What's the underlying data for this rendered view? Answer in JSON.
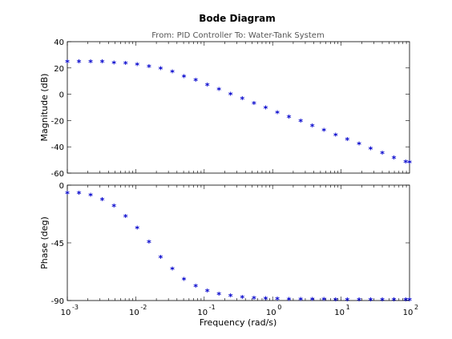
{
  "chart_data": {
    "type": "scatter",
    "title": "Bode Diagram",
    "subtitle": "From: PID Controller  To: Water-Tank System",
    "xlabel": "Frequency  (rad/s)",
    "xscale": "log",
    "xlim": [
      0.001,
      100
    ],
    "x_ticks": [
      {
        "base": "10",
        "exp": "-3",
        "value": 0.001
      },
      {
        "base": "10",
        "exp": "-2",
        "value": 0.01
      },
      {
        "base": "10",
        "exp": "-1",
        "value": 0.1
      },
      {
        "base": "10",
        "exp": "0",
        "value": 1
      },
      {
        "base": "10",
        "exp": "1",
        "value": 10
      },
      {
        "base": "10",
        "exp": "2",
        "value": 100
      }
    ],
    "marker": "*",
    "marker_color": "#0000cc",
    "grid": false,
    "x": [
      0.001,
      0.00148,
      0.00219,
      0.00324,
      0.0048,
      0.0071,
      0.0105,
      0.0156,
      0.0231,
      0.0342,
      0.0506,
      0.075,
      0.111,
      0.164,
      0.243,
      0.36,
      0.534,
      0.79,
      1.17,
      1.73,
      2.57,
      3.8,
      5.62,
      8.33,
      12.3,
      18.3,
      27.0,
      40.0,
      59.2,
      87.7,
      100
    ],
    "magnitude": {
      "ylabel": "Magnitude (dB)",
      "ylim": [
        -60,
        40
      ],
      "yticks": [
        "40",
        "20",
        "0",
        "-20",
        "-40",
        "-60"
      ],
      "ytick_values": [
        40,
        20,
        0,
        -20,
        -40,
        -60
      ],
      "values": [
        24,
        24,
        24,
        24,
        23.3,
        23,
        22,
        20.5,
        19,
        16.5,
        13,
        10,
        6.5,
        3,
        -0.5,
        -4,
        -7.5,
        -11,
        -14.5,
        -18,
        -21,
        -24.5,
        -28,
        -31.5,
        -35,
        -38.5,
        -42,
        -45.5,
        -49,
        -52,
        -52.5
      ]
    },
    "phase": {
      "ylabel": "Phase (deg)",
      "ylim": [
        -90,
        0
      ],
      "yticks": [
        "0",
        "-45",
        "-90"
      ],
      "ytick_values": [
        0,
        -45,
        -90
      ],
      "values": [
        -7,
        -7,
        -8.5,
        -12,
        -17,
        -25,
        -34,
        -45,
        -57,
        -66,
        -74,
        -79.5,
        -83,
        -85.5,
        -87,
        -88,
        -88.8,
        -89.2,
        -89.5,
        -89.6,
        -89.7,
        -89.8,
        -89.8,
        -89.9,
        -89.9,
        -89.9,
        -89.9,
        -89.9,
        -89.9,
        -89.9,
        -89.9
      ]
    }
  }
}
